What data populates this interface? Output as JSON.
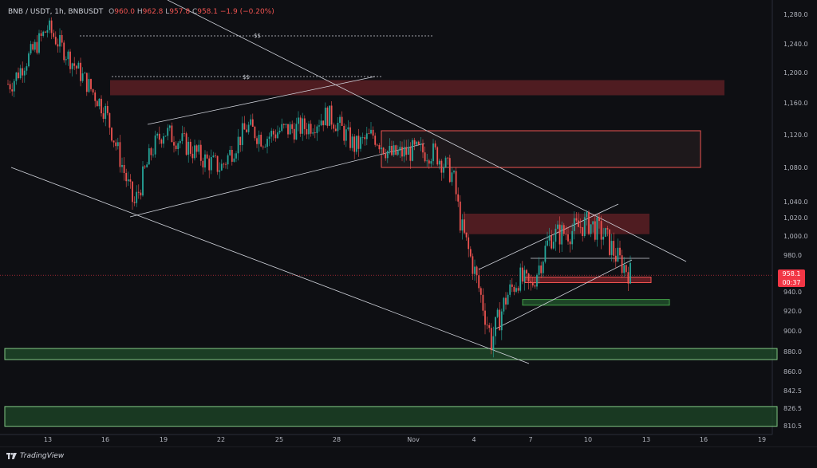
{
  "header": {
    "symbol": "BNB / USDT, 1h, BNBUSDT",
    "open_label": "O",
    "open": "960.0",
    "high_label": "H",
    "high": "962.8",
    "low_label": "L",
    "low": "957.8",
    "close_label": "C",
    "close": "958.1",
    "change": "−1.9 (−0.20%)"
  },
  "price_tag": {
    "price": "958.1",
    "countdown": "00:37"
  },
  "annotations": {
    "dollar_top": "$$",
    "dollar_mid": "$$"
  },
  "brand": "TradingView",
  "colors": {
    "background": "#0e0f13",
    "up": "#26a69a",
    "down": "#ef5350",
    "supply_zone": "#5a1f24",
    "demand_zone": "#1f4a2a",
    "price_line": "#f23645"
  },
  "chart_data": {
    "type": "candlestick",
    "symbol": "BNBUSDT",
    "timeframe": "1h",
    "x_tick_labels": [
      "13",
      "16",
      "19",
      "22",
      "25",
      "28",
      "Nov",
      "4",
      "7",
      "10",
      "13",
      "16",
      "19"
    ],
    "y_tick_labels": [
      "1,280.0",
      "1,240.0",
      "1,200.0",
      "1,160.0",
      "1,120.0",
      "1,080.0",
      "1,040.0",
      "1,020.0",
      "1,000.0",
      "980.0",
      "940.0",
      "920.0",
      "900.0",
      "880.0",
      "860.0",
      "842.5",
      "826.5",
      "810.5"
    ],
    "last_price": 958.1,
    "price_path": [
      {
        "x": "13",
        "y": 1185
      },
      {
        "x": "14",
        "y": 1262
      },
      {
        "x": "15",
        "y": 1200
      },
      {
        "x": "16",
        "y": 1150
      },
      {
        "x": "17",
        "y": 1035
      },
      {
        "x": "18",
        "y": 1100
      },
      {
        "x": "19",
        "y": 1125
      },
      {
        "x": "20",
        "y": 1110
      },
      {
        "x": "21",
        "y": 1090
      },
      {
        "x": "22",
        "y": 1080
      },
      {
        "x": "23",
        "y": 1130
      },
      {
        "x": "24",
        "y": 1115
      },
      {
        "x": "25",
        "y": 1125
      },
      {
        "x": "26",
        "y": 1130
      },
      {
        "x": "27",
        "y": 1145
      },
      {
        "x": "28",
        "y": 1135
      },
      {
        "x": "29",
        "y": 1105
      },
      {
        "x": "30",
        "y": 1120
      },
      {
        "x": "31",
        "y": 1095
      },
      {
        "x": "Nov",
        "y": 1100
      },
      {
        "x": "2",
        "y": 1098
      },
      {
        "x": "3",
        "y": 1070
      },
      {
        "x": "3b",
        "y": 1010
      },
      {
        "x": "4",
        "y": 965
      },
      {
        "x": "4b",
        "y": 890
      },
      {
        "x": "5",
        "y": 935
      },
      {
        "x": "6",
        "y": 955
      },
      {
        "x": "7",
        "y": 945
      },
      {
        "x": "8",
        "y": 1000
      },
      {
        "x": "9",
        "y": 1005
      },
      {
        "x": "10",
        "y": 1015
      },
      {
        "x": "11",
        "y": 1000
      },
      {
        "x": "12",
        "y": 975
      },
      {
        "x": "12b",
        "y": 958.1
      }
    ],
    "zones": [
      {
        "kind": "supply",
        "from": 1170,
        "to": 1190
      },
      {
        "kind": "supply",
        "from": 1080,
        "to": 1125
      },
      {
        "kind": "supply",
        "from": 1002,
        "to": 1025
      },
      {
        "kind": "supply",
        "from": 950,
        "to": 956
      },
      {
        "kind": "demand",
        "from": 926,
        "to": 932
      },
      {
        "kind": "demand",
        "from": 872,
        "to": 883
      },
      {
        "kind": "demand",
        "from": 810,
        "to": 828
      }
    ],
    "grid": false
  }
}
